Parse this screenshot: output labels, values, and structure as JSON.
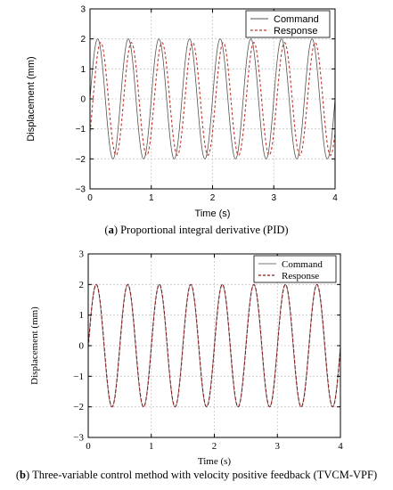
{
  "captions": {
    "a_label": "a",
    "a_text": "Proportional integral derivative (PID)",
    "b_label": "b",
    "b_text": "Three-variable control method with velocity positive feedback (TVCM-VPF)"
  },
  "colors": {
    "command_a": "#555555",
    "response_a": "#c0392b",
    "command_b": "#777777",
    "response_b": "#8b1a1a",
    "grid": "#c8c8c8"
  },
  "chart_data": [
    {
      "type": "line",
      "panel": "a",
      "xlabel": "Time (s)",
      "ylabel": "Displacement (mm)",
      "xlim": [
        0,
        4
      ],
      "ylim": [
        -3,
        3
      ],
      "xticks": [
        0,
        1,
        2,
        3,
        4
      ],
      "yticks": [
        -3,
        -2,
        -1,
        0,
        1,
        2,
        3
      ],
      "grid": true,
      "legend_position": "top-right",
      "series": [
        {
          "name": "Command",
          "style": "solid",
          "function": "sine",
          "amplitude": 2.0,
          "frequency_hz": 2,
          "phase_lag_s": 0
        },
        {
          "name": "Response",
          "style": "dashed",
          "function": "sine",
          "amplitude": 1.88,
          "frequency_hz": 2,
          "phase_lag_s": 0.05
        }
      ]
    },
    {
      "type": "line",
      "panel": "b",
      "xlabel": "Time (s)",
      "ylabel": "Displacement (mm)",
      "xlim": [
        0,
        4
      ],
      "ylim": [
        -3,
        3
      ],
      "xticks": [
        0,
        1,
        2,
        3,
        4
      ],
      "yticks": [
        -3,
        -2,
        -1,
        0,
        1,
        2,
        3
      ],
      "grid": true,
      "legend_position": "top-right",
      "series": [
        {
          "name": "Command",
          "style": "solid",
          "function": "sine",
          "amplitude": 2.0,
          "frequency_hz": 2,
          "phase_lag_s": 0
        },
        {
          "name": "Response",
          "style": "dashed",
          "function": "sine",
          "amplitude": 2.0,
          "frequency_hz": 2,
          "phase_lag_s": 0.003
        }
      ]
    }
  ]
}
